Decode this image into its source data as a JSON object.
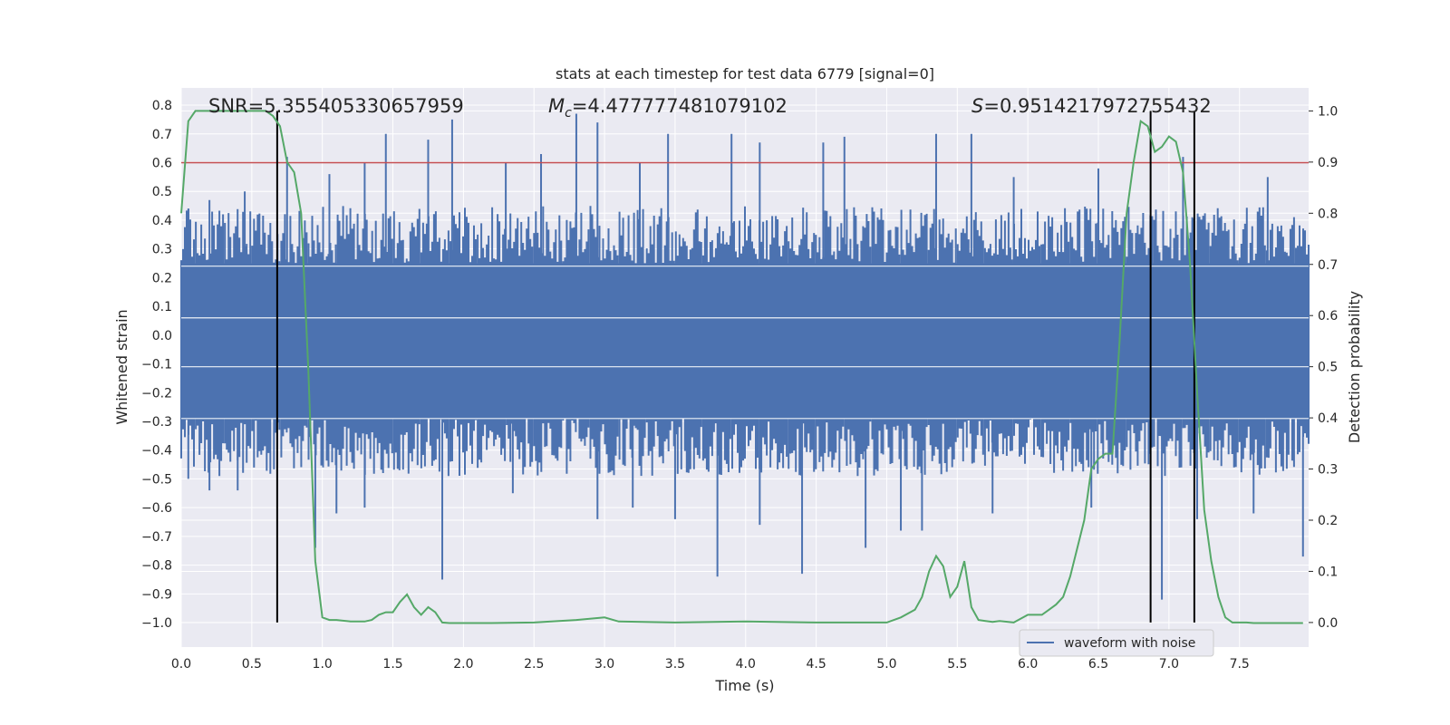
{
  "chart_data": {
    "type": "line",
    "title": "stats at each timestep for test data 6779 [signal=0]",
    "xlabel": "Time (s)",
    "ylabel": "Whitened strain",
    "ylabel_right": "Detection probability",
    "xlim": [
      0.0,
      7.99
    ],
    "ylim": [
      -1.085,
      0.86
    ],
    "ylim_right": [
      -0.048,
      1.045
    ],
    "x_ticks": [
      "0.0",
      "0.5",
      "1.0",
      "1.5",
      "2.0",
      "2.5",
      "3.0",
      "3.5",
      "4.0",
      "4.5",
      "5.0",
      "5.5",
      "6.0",
      "6.5",
      "7.0",
      "7.5"
    ],
    "y_ticks": [
      "0.8",
      "0.7",
      "0.6",
      "0.5",
      "0.4",
      "0.3",
      "0.2",
      "0.1",
      "0.0",
      "-0.1",
      "-0.2",
      "-0.3",
      "-0.4",
      "-0.5",
      "-0.6",
      "-0.7",
      "-0.8",
      "-0.9",
      "-1.0"
    ],
    "y_ticks_right": [
      "1.0",
      "0.9",
      "0.8",
      "0.7",
      "0.6",
      "0.5",
      "0.4",
      "0.3",
      "0.2",
      "0.1",
      "0.0"
    ],
    "threshold": {
      "value": 0.6,
      "axis": "left",
      "color": "#c44e52"
    },
    "vertical_lines": [
      0.68,
      6.87,
      7.18
    ],
    "annotations": {
      "snr": "SNR=5.355405330657959",
      "mc_symbol": "M",
      "mc_sub": "c",
      "mc_value": "=4.477777481079102",
      "s_symbol": "S",
      "s_value": "=0.9514217972755432"
    },
    "legend": {
      "label": "waveform with noise",
      "position": "lower-right"
    },
    "series": [
      {
        "name": "waveform with noise",
        "axis": "left",
        "color": "#4c72b0",
        "generated": true,
        "core_band": [
          -0.29,
          0.25
        ],
        "spikes_up": [
          [
            0.05,
            0.44
          ],
          [
            0.2,
            0.47
          ],
          [
            0.45,
            0.5
          ],
          [
            0.75,
            0.62
          ],
          [
            1.05,
            0.56
          ],
          [
            1.3,
            0.6
          ],
          [
            1.45,
            0.7
          ],
          [
            1.75,
            0.68
          ],
          [
            1.92,
            0.75
          ],
          [
            2.3,
            0.6
          ],
          [
            2.55,
            0.63
          ],
          [
            2.8,
            0.77
          ],
          [
            2.95,
            0.74
          ],
          [
            3.25,
            0.6
          ],
          [
            3.45,
            0.7
          ],
          [
            3.9,
            0.7
          ],
          [
            4.1,
            0.67
          ],
          [
            4.55,
            0.67
          ],
          [
            4.7,
            0.69
          ],
          [
            5.35,
            0.7
          ],
          [
            5.6,
            0.7
          ],
          [
            5.9,
            0.55
          ],
          [
            6.5,
            0.58
          ],
          [
            7.1,
            0.62
          ],
          [
            7.7,
            0.55
          ]
        ],
        "spikes_down": [
          [
            0.05,
            -0.5
          ],
          [
            0.2,
            -0.54
          ],
          [
            0.4,
            -0.54
          ],
          [
            0.95,
            -0.74
          ],
          [
            1.1,
            -0.62
          ],
          [
            1.3,
            -0.6
          ],
          [
            1.85,
            -0.85
          ],
          [
            2.35,
            -0.55
          ],
          [
            2.95,
            -0.64
          ],
          [
            3.2,
            -0.6
          ],
          [
            3.5,
            -0.64
          ],
          [
            3.8,
            -0.84
          ],
          [
            4.1,
            -0.66
          ],
          [
            4.4,
            -0.83
          ],
          [
            4.85,
            -0.74
          ],
          [
            5.1,
            -0.68
          ],
          [
            5.25,
            -0.68
          ],
          [
            5.75,
            -0.62
          ],
          [
            6.45,
            -0.6
          ],
          [
            6.95,
            -0.92
          ],
          [
            7.2,
            -0.64
          ],
          [
            7.6,
            -0.62
          ],
          [
            7.95,
            -0.77
          ]
        ]
      },
      {
        "name": "detection probability",
        "axis": "right",
        "color": "#55a868",
        "x": [
          0.0,
          0.05,
          0.1,
          0.2,
          0.3,
          0.4,
          0.5,
          0.6,
          0.65,
          0.7,
          0.75,
          0.8,
          0.85,
          0.9,
          0.95,
          1.0,
          1.05,
          1.1,
          1.2,
          1.3,
          1.35,
          1.4,
          1.45,
          1.5,
          1.55,
          1.6,
          1.65,
          1.7,
          1.75,
          1.8,
          1.85,
          1.9,
          1.95,
          2.0,
          2.1,
          2.2,
          2.5,
          2.8,
          3.0,
          3.1,
          3.5,
          4.0,
          4.5,
          5.0,
          5.1,
          5.2,
          5.25,
          5.3,
          5.35,
          5.4,
          5.45,
          5.5,
          5.55,
          5.6,
          5.65,
          5.7,
          5.75,
          5.8,
          5.9,
          6.0,
          6.1,
          6.15,
          6.2,
          6.25,
          6.3,
          6.4,
          6.45,
          6.5,
          6.55,
          6.6,
          6.65,
          6.7,
          6.75,
          6.8,
          6.85,
          6.9,
          6.95,
          7.0,
          7.05,
          7.1,
          7.15,
          7.2,
          7.25,
          7.3,
          7.35,
          7.4,
          7.45,
          7.5,
          7.55,
          7.6,
          7.7,
          7.85,
          7.95
        ],
        "values": [
          0.8,
          0.98,
          1.0,
          1.0,
          1.0,
          1.0,
          1.0,
          1.0,
          0.99,
          0.97,
          0.9,
          0.88,
          0.8,
          0.5,
          0.12,
          0.01,
          0.005,
          0.005,
          0.002,
          0.002,
          0.005,
          0.015,
          0.02,
          0.02,
          0.04,
          0.055,
          0.03,
          0.015,
          0.03,
          0.02,
          0.0,
          -0.001,
          -0.001,
          -0.001,
          -0.001,
          -0.001,
          0.0,
          0.005,
          0.01,
          0.002,
          0.0,
          0.002,
          0.0,
          0.0,
          0.01,
          0.025,
          0.05,
          0.1,
          0.13,
          0.11,
          0.05,
          0.07,
          0.12,
          0.03,
          0.005,
          0.003,
          0.001,
          0.003,
          0.0,
          0.015,
          0.015,
          0.025,
          0.035,
          0.05,
          0.09,
          0.2,
          0.3,
          0.32,
          0.33,
          0.33,
          0.55,
          0.8,
          0.9,
          0.98,
          0.97,
          0.92,
          0.93,
          0.95,
          0.94,
          0.88,
          0.7,
          0.45,
          0.22,
          0.12,
          0.05,
          0.01,
          0.0,
          0.0,
          0.0,
          -0.001,
          -0.001,
          -0.001,
          -0.001
        ]
      }
    ]
  }
}
